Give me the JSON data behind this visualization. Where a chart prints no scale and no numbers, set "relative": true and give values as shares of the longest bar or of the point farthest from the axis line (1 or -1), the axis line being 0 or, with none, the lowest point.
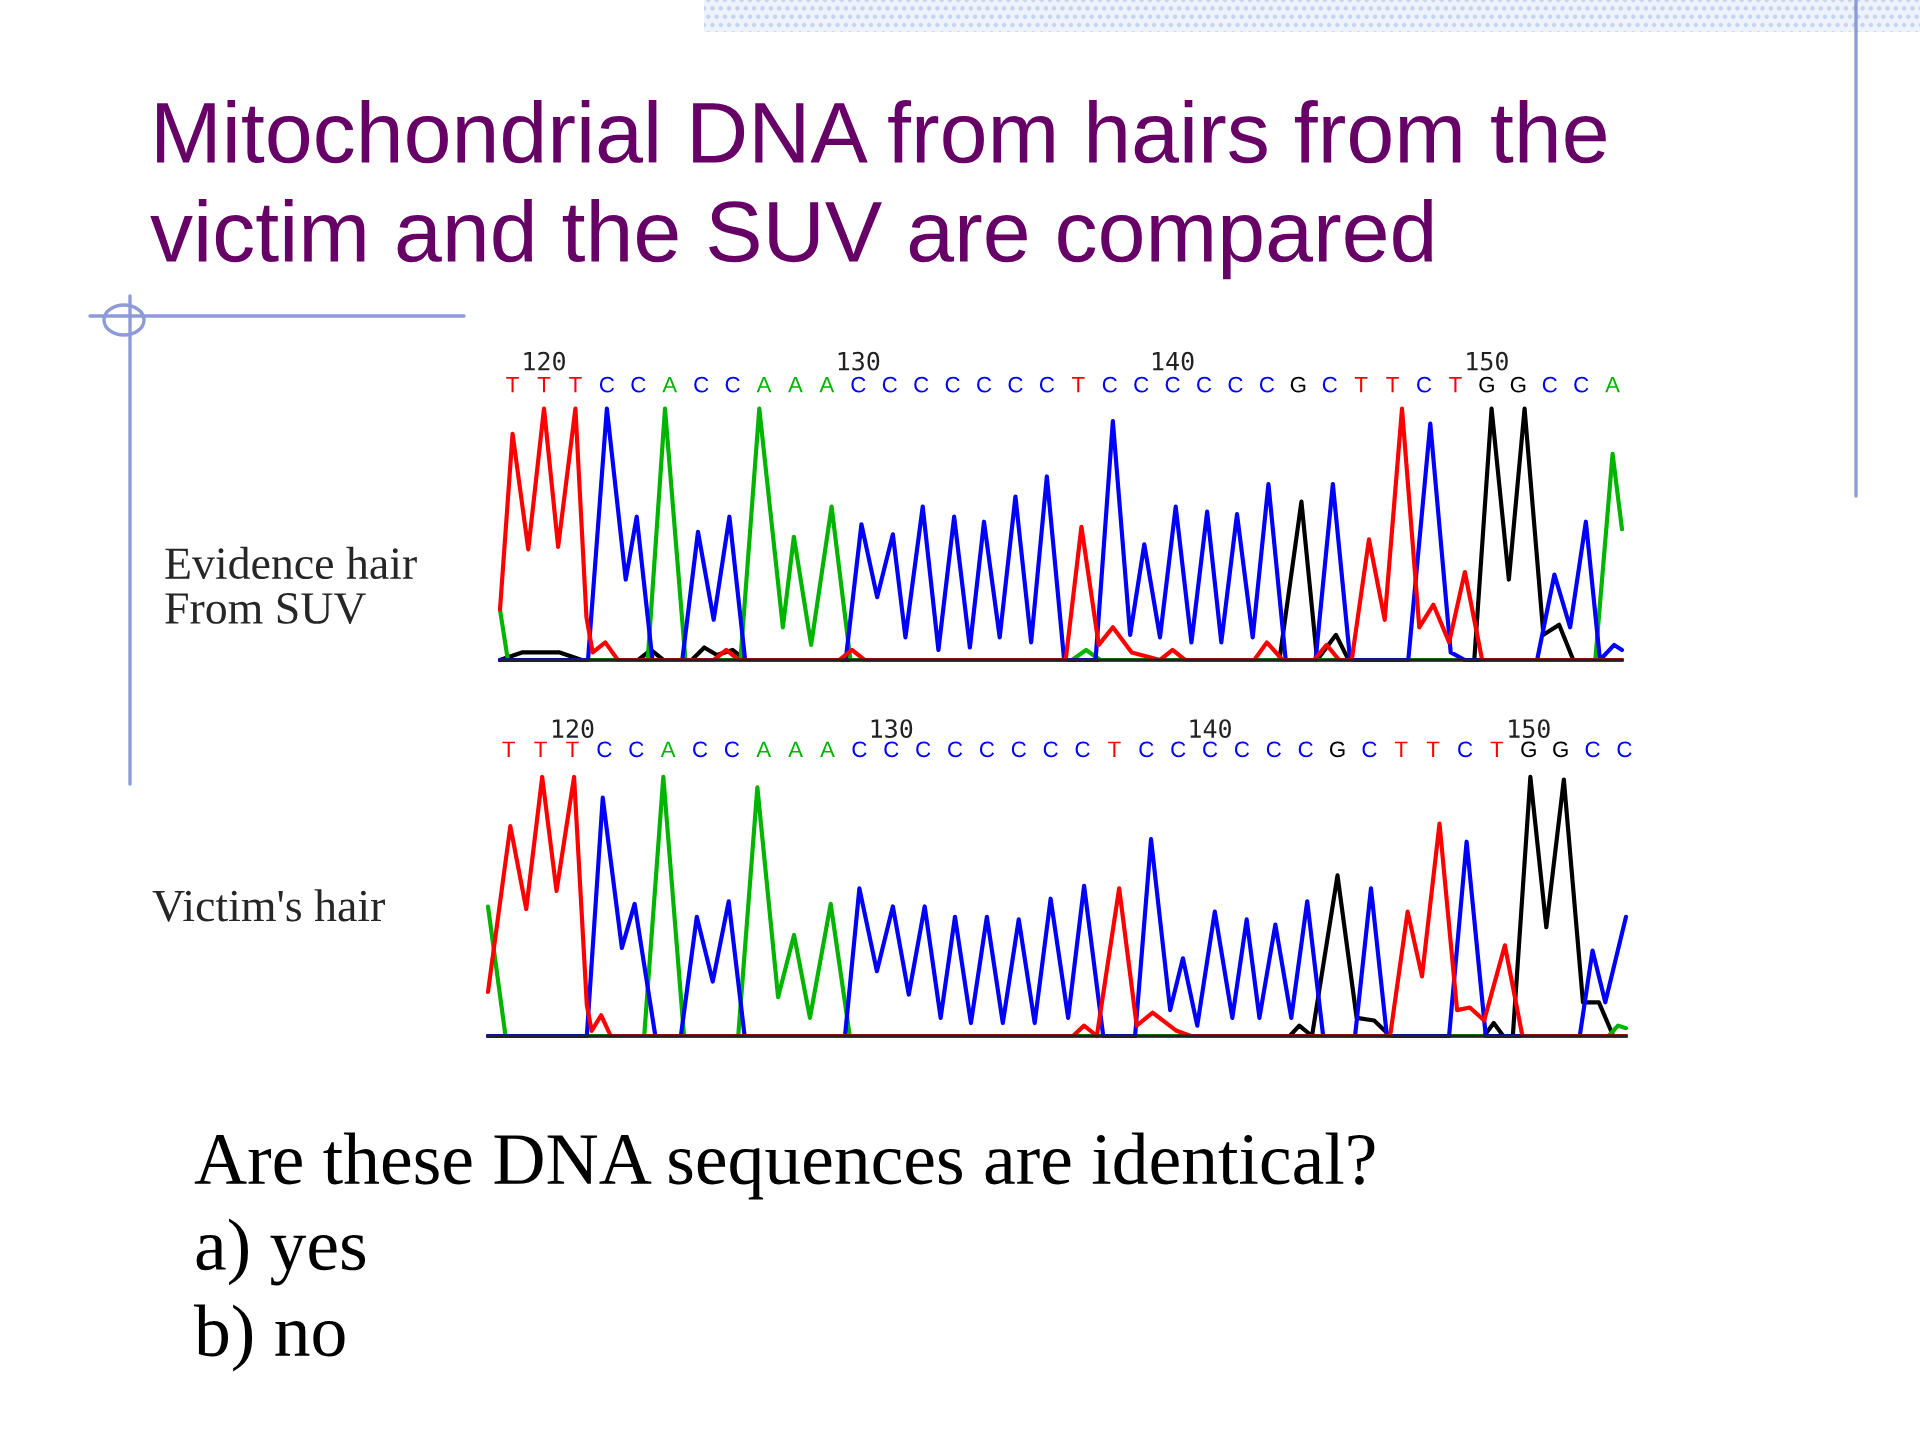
{
  "chart_data": [
    {
      "type": "line",
      "relative": true,
      "title": "Mitochondrial DNA from hairs from the\nvictim and the SUV are compared",
      "ylabel": "Evidence hair\nFrom SUV",
      "tick_labels": "x",
      "xlim": [
        118.6,
        154.3
      ],
      "xticks": [
        120,
        130,
        140,
        150
      ],
      "series": [
        {
          "color": "#000000",
          "x": [
            118.6,
            119.3,
            120.5,
            121.2,
            123.0,
            123.4,
            123.8,
            124.7,
            125.1,
            125.5,
            126.0,
            126.4,
            143.4,
            144.1,
            144.6,
            145.2,
            145.6,
            149.6,
            150.15,
            150.7,
            151.2,
            151.8,
            152.3,
            152.75,
            154.3
          ],
          "values": [
            0,
            0.03,
            0.03,
            0,
            0,
            0.04,
            0,
            0,
            0.05,
            0.02,
            0.04,
            0,
            0,
            0.63,
            0,
            0.1,
            0,
            0,
            1.0,
            0.32,
            1.0,
            0.1,
            0.14,
            0,
            0
          ]
        },
        {
          "color": "#00b400",
          "x": [
            118.6,
            118.85,
            123.3,
            123.85,
            124.5,
            126.25,
            126.85,
            127.6,
            127.95,
            128.5,
            129.15,
            129.75,
            136.8,
            137.25,
            137.7,
            153.45,
            154.0,
            154.3
          ],
          "values": [
            0.2,
            0,
            0,
            1.0,
            0,
            0,
            1.0,
            0.13,
            0.49,
            0.06,
            0.61,
            0,
            0,
            0.04,
            0,
            0,
            0.82,
            0.52
          ]
        },
        {
          "color": "#0000ff",
          "x": [
            118.6,
            121.4,
            122.0,
            122.6,
            122.95,
            123.45,
            124.4,
            124.9,
            125.4,
            125.9,
            126.4,
            129.6,
            130.1,
            130.6,
            131.1,
            131.5,
            132.05,
            132.55,
            133.05,
            133.55,
            134.0,
            134.5,
            135.0,
            135.5,
            136.0,
            136.55,
            137.55,
            138.1,
            138.65,
            139.1,
            139.6,
            140.1,
            140.6,
            141.1,
            141.55,
            142.05,
            142.55,
            143.05,
            143.6,
            144.55,
            145.1,
            145.65,
            147.5,
            148.2,
            148.85,
            149.3,
            151.6,
            152.15,
            152.65,
            153.15,
            153.6,
            154.05,
            154.3
          ],
          "values": [
            0,
            0,
            1.0,
            0.32,
            0.57,
            0,
            0,
            0.51,
            0.16,
            0.57,
            0,
            0,
            0.54,
            0.25,
            0.5,
            0.09,
            0.61,
            0.04,
            0.57,
            0.05,
            0.55,
            0.09,
            0.65,
            0.07,
            0.73,
            0,
            0,
            0.95,
            0.1,
            0.46,
            0.09,
            0.61,
            0.07,
            0.59,
            0.07,
            0.58,
            0.09,
            0.7,
            0,
            0,
            0.7,
            0,
            0,
            0.94,
            0.03,
            0,
            0,
            0.34,
            0.13,
            0.55,
            0,
            0.06,
            0.04
          ]
        },
        {
          "color": "#ff0000",
          "x": [
            118.6,
            119.0,
            119.5,
            120.0,
            120.45,
            121.0,
            121.35,
            121.55,
            121.95,
            122.35,
            125.4,
            125.8,
            126.2,
            129.4,
            129.8,
            130.2,
            136.6,
            137.1,
            137.65,
            138.1,
            138.7,
            139.6,
            140.0,
            140.4,
            142.6,
            143.0,
            143.5,
            144.5,
            144.9,
            145.3,
            145.7,
            146.25,
            146.75,
            147.3,
            147.85,
            148.3,
            148.8,
            149.3,
            149.85,
            154.3
          ],
          "values": [
            0.2,
            0.9,
            0.44,
            1.0,
            0.45,
            1.0,
            0.17,
            0.03,
            0.07,
            0,
            0,
            0.04,
            0,
            0,
            0.04,
            0,
            0,
            0.53,
            0.06,
            0.13,
            0.03,
            0,
            0.04,
            0,
            0,
            0.07,
            0,
            0,
            0.06,
            0,
            0,
            0.48,
            0.16,
            1.0,
            0.13,
            0.22,
            0.07,
            0.35,
            0,
            0
          ]
        }
      ],
      "annotations": [
        "T",
        "T",
        "T",
        "C",
        "C",
        "A",
        "C",
        "C",
        "A",
        "A",
        "A",
        "C",
        "C",
        "C",
        "C",
        "C",
        "C",
        "C",
        "T",
        "C",
        "C",
        "C",
        "C",
        "C",
        "C",
        "G",
        "C",
        "T",
        "T",
        "C",
        "T",
        "G",
        "G",
        "C",
        "C",
        "A"
      ]
    },
    {
      "type": "line",
      "relative": true,
      "ylabel": "Victim's hair",
      "tick_labels": "x",
      "xlim": [
        117.35,
        153.05
      ],
      "xticks": [
        120,
        130,
        140,
        150
      ],
      "series": [
        {
          "color": "#000000",
          "x": [
            117.35,
            142.5,
            142.8,
            143.2,
            144.0,
            144.6,
            145.15,
            145.65,
            148.6,
            148.9,
            149.2,
            149.5,
            150.05,
            150.55,
            151.1,
            151.7,
            152.2,
            152.65,
            153.05
          ],
          "values": [
            0,
            0,
            0.04,
            0,
            0.62,
            0.07,
            0.06,
            0,
            0,
            0.05,
            0,
            0,
            1.0,
            0.42,
            0.99,
            0.13,
            0.13,
            0,
            0
          ]
        },
        {
          "color": "#00b400",
          "x": [
            117.35,
            117.9,
            122.25,
            122.85,
            123.5,
            125.2,
            125.8,
            126.45,
            126.95,
            127.45,
            128.1,
            128.7,
            152.5,
            152.8,
            153.05
          ],
          "values": [
            0.5,
            0,
            0,
            1.0,
            0,
            0,
            0.96,
            0.15,
            0.39,
            0.07,
            0.51,
            0,
            0,
            0.04,
            0.03
          ]
        },
        {
          "color": "#0000ff",
          "x": [
            117.35,
            120.45,
            120.95,
            121.55,
            121.95,
            122.6,
            123.4,
            123.9,
            124.4,
            124.9,
            125.4,
            128.55,
            129.0,
            129.55,
            130.05,
            130.55,
            131.05,
            131.55,
            132.0,
            132.5,
            133.0,
            133.5,
            134.0,
            134.5,
            135.0,
            135.55,
            136.05,
            136.65,
            137.65,
            138.15,
            138.75,
            139.15,
            139.6,
            140.15,
            140.7,
            141.15,
            141.55,
            142.05,
            142.55,
            143.05,
            143.55,
            144.55,
            145.05,
            145.55,
            147.5,
            148.05,
            148.65,
            151.6,
            152.0,
            152.4,
            153.05
          ],
          "values": [
            0,
            0,
            0.92,
            0.34,
            0.51,
            0,
            0,
            0.46,
            0.21,
            0.52,
            0,
            0,
            0.57,
            0.25,
            0.5,
            0.16,
            0.5,
            0.07,
            0.46,
            0.05,
            0.46,
            0.05,
            0.45,
            0.05,
            0.53,
            0.07,
            0.58,
            0,
            0,
            0.76,
            0.1,
            0.3,
            0.04,
            0.48,
            0.07,
            0.45,
            0.07,
            0.43,
            0.07,
            0.52,
            0,
            0,
            0.57,
            0,
            0,
            0.75,
            0,
            0,
            0.33,
            0.13,
            0.46
          ]
        },
        {
          "color": "#ff0000",
          "x": [
            117.35,
            118.05,
            118.55,
            119.05,
            119.5,
            120.05,
            120.45,
            120.6,
            120.9,
            121.2,
            135.7,
            136.05,
            136.45,
            137.15,
            137.7,
            138.2,
            138.95,
            139.4,
            145.65,
            146.2,
            146.65,
            147.2,
            147.75,
            148.15,
            148.6,
            149.25,
            149.8,
            153.05
          ],
          "values": [
            0.17,
            0.81,
            0.49,
            1.0,
            0.56,
            1.0,
            0.12,
            0.02,
            0.08,
            0,
            0,
            0.04,
            0,
            0.57,
            0.04,
            0.09,
            0.02,
            0,
            0,
            0.48,
            0.23,
            0.82,
            0.1,
            0.11,
            0.06,
            0.35,
            0,
            0
          ]
        }
      ],
      "annotations": [
        "T",
        "T",
        "T",
        "C",
        "C",
        "A",
        "C",
        "C",
        "A",
        "A",
        "A",
        "C",
        "C",
        "C",
        "C",
        "C",
        "C",
        "C",
        "C",
        "T",
        "C",
        "C",
        "C",
        "C",
        "C",
        "C",
        "G",
        "C",
        "T",
        "T",
        "C",
        "T",
        "G",
        "G",
        "C",
        "C"
      ]
    },
    {
      "type": "other",
      "annotations": [
        "Are these DNA sequences are identical?",
        "a) yes",
        "b) no"
      ]
    }
  ]
}
